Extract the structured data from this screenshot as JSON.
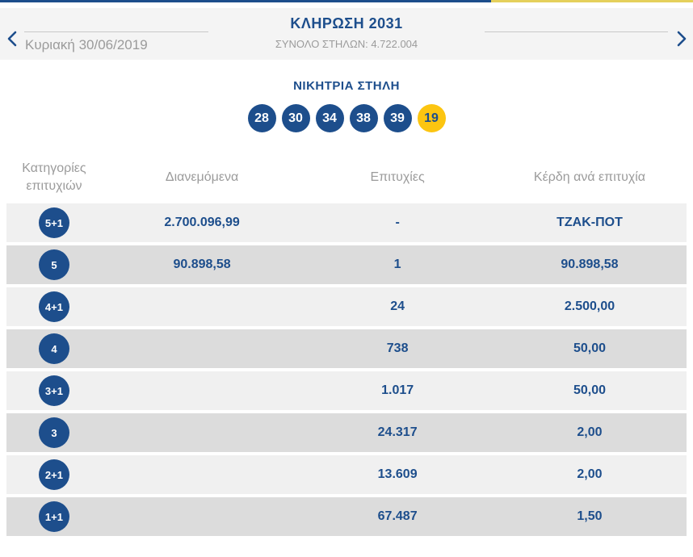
{
  "colors": {
    "brand_blue": "#1d4e8c",
    "accent_yellow": "#fcc511",
    "strip_yellow": "#e5d05c",
    "header_bg": "#f4f4f4",
    "row_light": "#f0f0f0",
    "row_dark": "#dcdcdc",
    "muted_text": "#9b9b9b",
    "line": "#c9c9c9"
  },
  "header": {
    "title": "ΚΛΗΡΩΣΗ 2031",
    "subtitle": "ΣΥΝΟΛΟ ΣΤΗΛΩΝ: 4.722.004",
    "date": "Κυριακή 30/06/2019",
    "prev_icon": "chevron-left",
    "next_icon": "chevron-right"
  },
  "winning": {
    "title": "ΝΙΚΗΤΡΙΑ ΣΤΗΛΗ",
    "numbers": [
      "28",
      "30",
      "34",
      "38",
      "39"
    ],
    "bonus": "19"
  },
  "table": {
    "columns": [
      "Κατηγορίες επιτυχιών",
      "Διανεμόμενα",
      "Επιτυχίες",
      "Κέρδη ανά επιτυχία"
    ],
    "rows": [
      {
        "category": "5+1",
        "distributed": "2.700.096,99",
        "successes": "-",
        "winnings": "ΤΖΑΚ-ΠΟΤ"
      },
      {
        "category": "5",
        "distributed": "90.898,58",
        "successes": "1",
        "winnings": "90.898,58"
      },
      {
        "category": "4+1",
        "distributed": "",
        "successes": "24",
        "winnings": "2.500,00"
      },
      {
        "category": "4",
        "distributed": "",
        "successes": "738",
        "winnings": "50,00"
      },
      {
        "category": "3+1",
        "distributed": "",
        "successes": "1.017",
        "winnings": "50,00"
      },
      {
        "category": "3",
        "distributed": "",
        "successes": "24.317",
        "winnings": "2,00"
      },
      {
        "category": "2+1",
        "distributed": "",
        "successes": "13.609",
        "winnings": "2,00"
      },
      {
        "category": "1+1",
        "distributed": "",
        "successes": "67.487",
        "winnings": "1,50"
      }
    ]
  }
}
